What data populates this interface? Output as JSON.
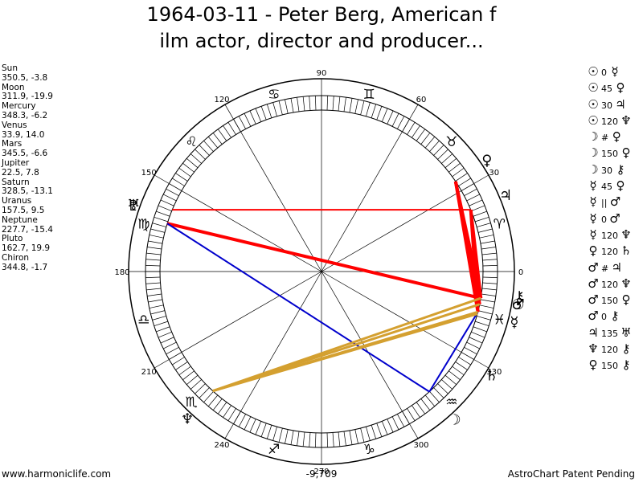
{
  "title": {
    "line1": "1964-03-11 - Peter Berg, American f",
    "line2": "ilm actor, director and producer..."
  },
  "bodies": [
    {
      "name": "Sun",
      "coords": "350.5, -3.8",
      "lon": 350.5,
      "glyph": "☉"
    },
    {
      "name": "Moon",
      "coords": "311.9, -19.9",
      "lon": 311.9,
      "glyph": "☽"
    },
    {
      "name": "Mercury",
      "coords": "348.3, -6.2",
      "lon": 348.3,
      "glyph": "☿"
    },
    {
      "name": "Venus",
      "coords": "33.9, 14.0",
      "lon": 33.9,
      "glyph": "♀"
    },
    {
      "name": "Mars",
      "coords": "345.5, -6.6",
      "lon": 345.5,
      "glyph": "♂"
    },
    {
      "name": "Jupiter",
      "coords": "22.5, 7.8",
      "lon": 22.5,
      "glyph": "♃"
    },
    {
      "name": "Saturn",
      "coords": "328.5, -13.1",
      "lon": 328.5,
      "glyph": "♄"
    },
    {
      "name": "Uranus",
      "coords": "157.5, 9.5",
      "lon": 157.5,
      "glyph": "♅"
    },
    {
      "name": "Neptune",
      "coords": "227.7, -15.4",
      "lon": 227.7,
      "glyph": "♆"
    },
    {
      "name": "Pluto",
      "coords": "162.7, 19.9",
      "lon": 162.7,
      "glyph": "♇"
    },
    {
      "name": "Chiron",
      "coords": "344.8, -1.7",
      "lon": 344.8,
      "glyph": "⚷"
    }
  ],
  "wheel": {
    "degree_labels": [
      "90",
      "60",
      "30",
      "0",
      "330",
      "300",
      "270",
      "240",
      "210",
      "180",
      "150",
      "120"
    ],
    "zodiac_signs": [
      "♈",
      "♉",
      "♊",
      "♋",
      "♌",
      "♍",
      "♎",
      "♏",
      "♐",
      "♑",
      "♒",
      "♓"
    ]
  },
  "aspects": [
    {
      "p1": "☉",
      "angle": "0",
      "p2": "☿"
    },
    {
      "p1": "☉",
      "angle": "45",
      "p2": "♀"
    },
    {
      "p1": "☉",
      "angle": "30",
      "p2": "♃"
    },
    {
      "p1": "☉",
      "angle": "120",
      "p2": "♆"
    },
    {
      "p1": "☽",
      "angle": "#",
      "p2": "♀"
    },
    {
      "p1": "☽",
      "angle": "150",
      "p2": "♀"
    },
    {
      "p1": "☽",
      "angle": "30",
      "p2": "⚷"
    },
    {
      "p1": "☿",
      "angle": "45",
      "p2": "♀"
    },
    {
      "p1": "☿",
      "angle": "||",
      "p2": "♂"
    },
    {
      "p1": "☿",
      "angle": "0",
      "p2": "♂"
    },
    {
      "p1": "☿",
      "angle": "120",
      "p2": "♆"
    },
    {
      "p1": "♀",
      "angle": "120",
      "p2": "♄"
    },
    {
      "p1": "♂",
      "angle": "#",
      "p2": "♃"
    },
    {
      "p1": "♂",
      "angle": "120",
      "p2": "♆"
    },
    {
      "p1": "♂",
      "angle": "150",
      "p2": "♀"
    },
    {
      "p1": "♂",
      "angle": "0",
      "p2": "⚷"
    },
    {
      "p1": "♃",
      "angle": "135",
      "p2": "♅"
    },
    {
      "p1": "♆",
      "angle": "120",
      "p2": "⚷"
    },
    {
      "p1": "♀",
      "angle": "150",
      "p2": "⚷"
    }
  ],
  "footer": {
    "left": "www.harmoniclife.com",
    "center": "-9,709",
    "right": "AstroChart Patent Pending"
  },
  "colors": {
    "red_aspect": "#ff0000",
    "blue_aspect": "#0000cc",
    "gold_aspect": "#d4a030"
  }
}
